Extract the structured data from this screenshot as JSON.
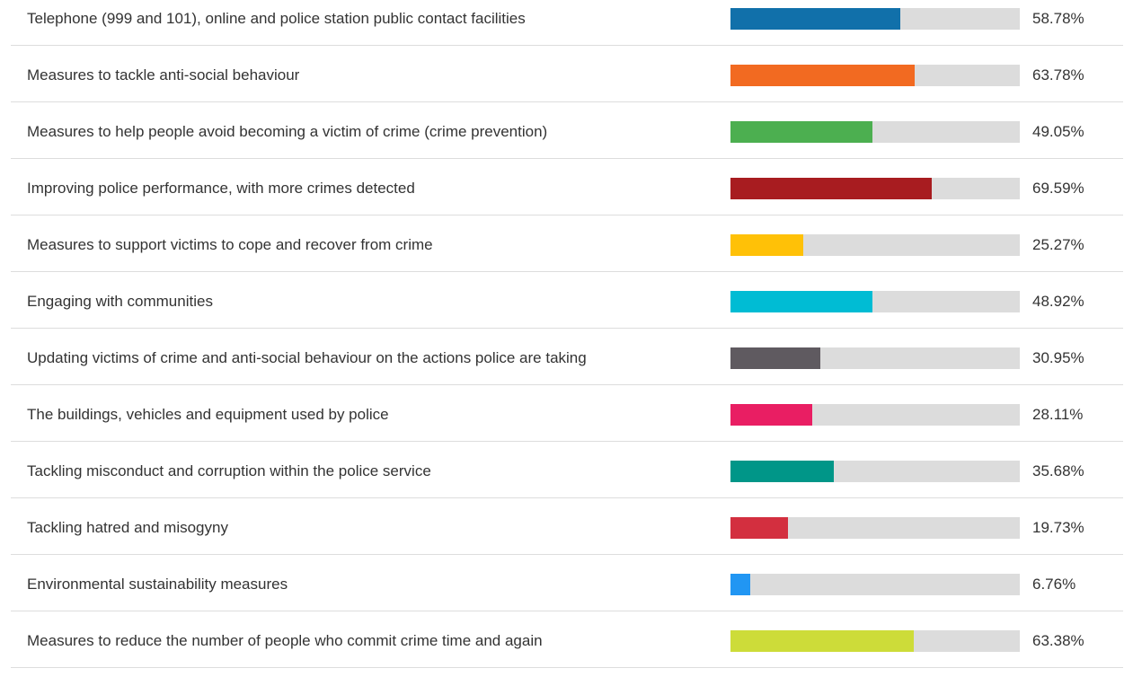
{
  "chart_data": {
    "type": "bar",
    "categories": [
      "Telephone (999 and 101), online and police station public contact facilities",
      "Measures to tackle anti-social behaviour",
      "Measures to help people avoid becoming a victim of crime (crime prevention)",
      "Improving police performance, with more crimes detected",
      "Measures to support victims to cope and recover from crime",
      "Engaging with communities",
      "Updating victims of crime and anti-social behaviour on the actions police are taking",
      "The buildings, vehicles and equipment used by police",
      "Tackling misconduct and corruption within the police service",
      "Tackling hatred and misogyny",
      "Environmental sustainability measures",
      "Measures to reduce the number of people who commit crime time and again"
    ],
    "values": [
      58.78,
      63.78,
      49.05,
      69.59,
      25.27,
      48.92,
      30.95,
      28.11,
      35.68,
      19.73,
      6.76,
      63.38
    ],
    "value_labels": [
      "58.78%",
      "63.78%",
      "49.05%",
      "69.59%",
      "25.27%",
      "48.92%",
      "30.95%",
      "28.11%",
      "35.68%",
      "19.73%",
      "6.76%",
      "63.38%"
    ],
    "colors": [
      "#1170aa",
      "#f26a21",
      "#4caf50",
      "#a81c20",
      "#ffc107",
      "#00bcd4",
      "#5f5a60",
      "#e91e63",
      "#009688",
      "#d32f3f",
      "#2196f3",
      "#cddc39"
    ],
    "track_color": "#dcdcdc",
    "xlim": [
      0,
      100
    ]
  }
}
